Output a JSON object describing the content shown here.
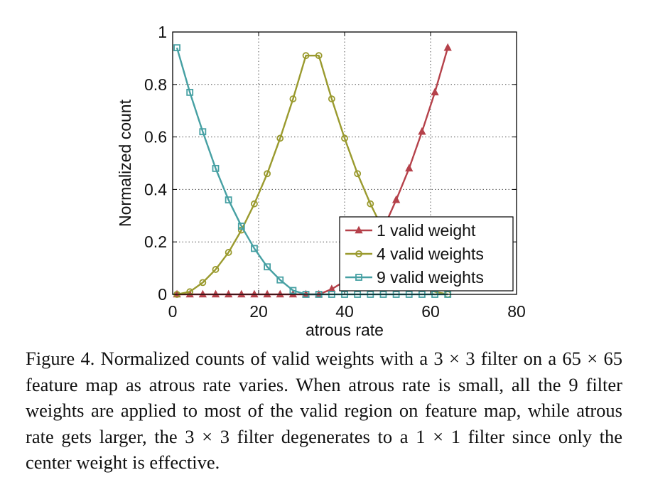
{
  "chart_data": {
    "type": "line",
    "xlabel": "atrous rate",
    "ylabel": "Normalized count",
    "xlim": [
      0,
      80
    ],
    "ylim": [
      0,
      1
    ],
    "xticks": [
      0,
      20,
      40,
      60,
      80
    ],
    "yticks": [
      0,
      0.2,
      0.4,
      0.6,
      0.8,
      1
    ],
    "xtick_labels": [
      "0",
      "20",
      "40",
      "60",
      "80"
    ],
    "ytick_labels": [
      "0",
      "0.2",
      "0.4",
      "0.6",
      "0.8",
      "1"
    ],
    "grid": true,
    "legend_position": "bottom-right",
    "x": [
      1,
      4,
      7,
      10,
      13,
      16,
      19,
      22,
      25,
      28,
      31,
      34,
      37,
      40,
      43,
      46,
      49,
      52,
      55,
      58,
      61,
      64
    ],
    "series": [
      {
        "name": "1 valid weight",
        "color": "#b5414a",
        "marker": "triangle",
        "values": [
          0,
          0,
          0,
          0,
          0,
          0,
          0,
          0,
          0,
          0,
          0,
          0,
          0.02,
          0.05,
          0.09,
          0.16,
          0.25,
          0.36,
          0.48,
          0.62,
          0.77,
          0.94
        ]
      },
      {
        "name": "4 valid weights",
        "color": "#9a9a2e",
        "marker": "circle",
        "values": [
          0,
          0.01,
          0.045,
          0.095,
          0.16,
          0.245,
          0.345,
          0.46,
          0.595,
          0.745,
          0.91,
          0.91,
          0.745,
          0.595,
          0.46,
          0.345,
          0.245,
          0.16,
          0.095,
          0.045,
          0.01,
          0
        ]
      },
      {
        "name": "9 valid weights",
        "color": "#46a0a3",
        "marker": "square",
        "values": [
          0.94,
          0.77,
          0.62,
          0.48,
          0.36,
          0.26,
          0.175,
          0.105,
          0.055,
          0.015,
          0,
          0,
          0,
          0,
          0,
          0,
          0,
          0,
          0,
          0,
          0,
          0
        ]
      }
    ]
  },
  "caption": "Figure 4. Normalized counts of valid weights with a 3 × 3 filter on a 65 × 65 feature map as atrous rate varies. When atrous rate is small, all the 9 filter weights are applied to most of the valid region on feature map, while atrous rate gets larger, the 3 × 3 filter degenerates to a 1 × 1 filter since only the center weight is effective."
}
